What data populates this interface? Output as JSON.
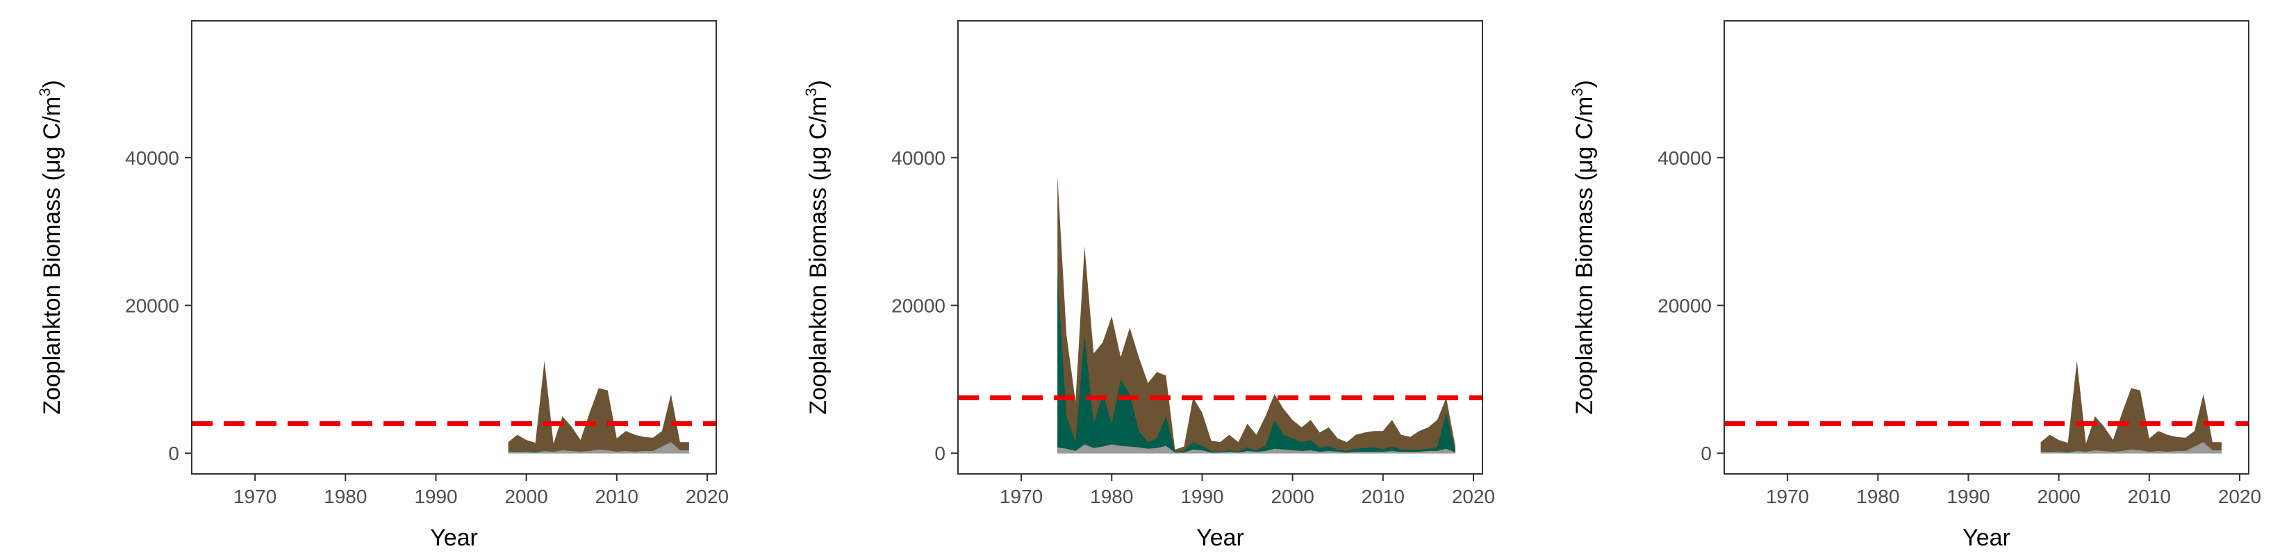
{
  "colors": {
    "total": "#6b5333",
    "series_a": "#005c4b",
    "series_b": "#9a9a9a",
    "threshold": "#ee0000",
    "axis": "#333333",
    "text": "#4d4d4d"
  },
  "chart_data": [
    {
      "type": "area",
      "xlabel": "Year",
      "ylabel_main": "Zooplankton Biomass (μg C/m",
      "ylabel_sup": "3",
      "ylabel_close": ")",
      "xlim": [
        1963,
        2021
      ],
      "ylim": [
        -2800,
        58500
      ],
      "xticks": [
        1970,
        1980,
        1990,
        2000,
        2010,
        2020
      ],
      "yticks": [
        0,
        20000,
        40000
      ],
      "threshold": 4000,
      "x": [
        1998,
        1999,
        2000,
        2001,
        2002,
        2003,
        2004,
        2005,
        2006,
        2007,
        2008,
        2009,
        2010,
        2011,
        2012,
        2013,
        2014,
        2015,
        2016,
        2017,
        2018
      ],
      "series": [
        {
          "values": [
            1500,
            2500,
            1800,
            1400,
            12500,
            1300,
            5000,
            3600,
            1800,
            5500,
            8800,
            8500,
            2000,
            3000,
            2500,
            2200,
            2100,
            3000,
            8000,
            1500,
            1500
          ]
        },
        {
          "values": [
            200,
            300,
            200,
            200,
            300,
            200,
            300,
            200,
            200,
            300,
            300,
            300,
            200,
            300,
            200,
            200,
            200,
            300,
            300,
            200,
            200
          ]
        },
        {
          "values": [
            200,
            200,
            200,
            100,
            300,
            200,
            400,
            300,
            200,
            300,
            500,
            400,
            200,
            300,
            200,
            300,
            300,
            900,
            1500,
            400,
            400
          ]
        }
      ]
    },
    {
      "type": "area",
      "xlabel": "Year",
      "ylabel_main": "Zooplankton Biomass (μg C/m",
      "ylabel_sup": "3",
      "ylabel_close": ")",
      "xlim": [
        1963,
        2021
      ],
      "ylim": [
        -2800,
        58500
      ],
      "xticks": [
        1970,
        1980,
        1990,
        2000,
        2010,
        2020
      ],
      "yticks": [
        0,
        20000,
        40000
      ],
      "threshold": 7500,
      "x": [
        1974,
        1975,
        1976,
        1977,
        1978,
        1979,
        1980,
        1981,
        1982,
        1983,
        1984,
        1985,
        1986,
        1987,
        1988,
        1989,
        1990,
        1991,
        1992,
        1993,
        1994,
        1995,
        1996,
        1997,
        1998,
        1999,
        2000,
        2001,
        2002,
        2003,
        2004,
        2005,
        2006,
        2007,
        2008,
        2009,
        2010,
        2011,
        2012,
        2013,
        2014,
        2015,
        2016,
        2017,
        2018
      ],
      "series": [
        {
          "values": [
            37500,
            16000,
            7000,
            28000,
            13500,
            15000,
            18500,
            13000,
            17000,
            13000,
            9500,
            11000,
            10500,
            500,
            900,
            7500,
            5500,
            1700,
            1500,
            2500,
            1500,
            4000,
            2500,
            5000,
            8000,
            6000,
            4500,
            3500,
            4500,
            2800,
            3500,
            2000,
            1500,
            2500,
            2800,
            3000,
            3000,
            4500,
            2500,
            2200,
            3000,
            3500,
            4500,
            7500,
            1000
          ]
        },
        {
          "values": [
            24000,
            5000,
            1500,
            16000,
            4000,
            8000,
            4000,
            10000,
            8000,
            3000,
            1500,
            2000,
            5000,
            200,
            300,
            1500,
            1000,
            300,
            200,
            400,
            200,
            800,
            400,
            1000,
            4500,
            2500,
            2000,
            1500,
            1800,
            700,
            1000,
            500,
            300,
            600,
            700,
            800,
            500,
            900,
            500,
            400,
            500,
            600,
            800,
            5500,
            200
          ]
        },
        {
          "values": [
            800,
            600,
            300,
            1200,
            700,
            900,
            1200,
            1000,
            900,
            800,
            600,
            700,
            1000,
            100,
            100,
            500,
            400,
            100,
            100,
            200,
            100,
            300,
            200,
            300,
            600,
            500,
            400,
            300,
            400,
            200,
            300,
            200,
            100,
            200,
            200,
            200,
            200,
            300,
            200,
            200,
            200,
            300,
            300,
            600,
            100
          ]
        }
      ]
    },
    {
      "type": "area",
      "xlabel": "Year",
      "ylabel_main": "Zooplankton Biomass (μg C/m",
      "ylabel_sup": "3",
      "ylabel_close": ")",
      "xlim": [
        1963,
        2021
      ],
      "ylim": [
        -2800,
        58500
      ],
      "xticks": [
        1970,
        1980,
        1990,
        2000,
        2010,
        2020
      ],
      "yticks": [
        0,
        20000,
        40000
      ],
      "threshold": 4000,
      "x": [
        1998,
        1999,
        2000,
        2001,
        2002,
        2003,
        2004,
        2005,
        2006,
        2007,
        2008,
        2009,
        2010,
        2011,
        2012,
        2013,
        2014,
        2015,
        2016,
        2017,
        2018
      ],
      "series": [
        {
          "values": [
            1500,
            2500,
            1800,
            1400,
            12500,
            1300,
            5000,
            3600,
            1800,
            5500,
            8800,
            8500,
            2000,
            3000,
            2500,
            2200,
            2100,
            3000,
            8000,
            1500,
            1500
          ]
        },
        {
          "values": [
            200,
            300,
            200,
            200,
            300,
            200,
            300,
            200,
            200,
            300,
            300,
            300,
            200,
            300,
            200,
            200,
            200,
            300,
            300,
            200,
            200
          ]
        },
        {
          "values": [
            200,
            200,
            200,
            100,
            300,
            200,
            400,
            300,
            200,
            300,
            500,
            400,
            200,
            300,
            200,
            300,
            300,
            900,
            1500,
            400,
            400
          ]
        }
      ]
    }
  ]
}
